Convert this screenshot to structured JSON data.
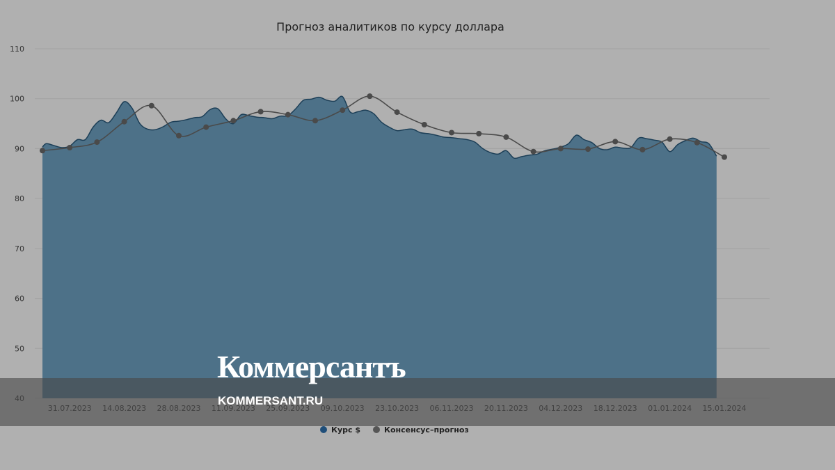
{
  "chart_data": {
    "type": "area",
    "title": "Прогноз аналитиков по курсу доллара",
    "xlabel": "",
    "ylabel": "",
    "ylim": [
      40,
      110
    ],
    "yticks": [
      "110",
      "100",
      "90",
      "80",
      "70",
      "60",
      "50",
      "40"
    ],
    "xticks": [
      "31.07.2023",
      "14.08.2023",
      "28.08.2023",
      "11.09.2023",
      "25.09.2023",
      "09.10.2023",
      "23.10.2023",
      "06.11.2023",
      "20.11.2023",
      "04.12.2023",
      "18.12.2023",
      "01.01.2024",
      "15.01.2024"
    ],
    "grid": true,
    "legend_position": "bottom",
    "series": [
      {
        "name": "Курс $",
        "type": "area",
        "color": "#4d7188",
        "x": [
          "2023-07-24",
          "2023-07-25",
          "2023-07-27",
          "2023-07-29",
          "2023-07-31",
          "2023-08-02",
          "2023-08-04",
          "2023-08-06",
          "2023-08-08",
          "2023-08-10",
          "2023-08-12",
          "2023-08-14",
          "2023-08-16",
          "2023-08-18",
          "2023-08-20",
          "2023-08-22",
          "2023-08-24",
          "2023-08-26",
          "2023-08-28",
          "2023-08-30",
          "2023-09-01",
          "2023-09-03",
          "2023-09-05",
          "2023-09-07",
          "2023-09-09",
          "2023-09-11",
          "2023-09-13",
          "2023-09-15",
          "2023-09-17",
          "2023-09-19",
          "2023-09-21",
          "2023-09-23",
          "2023-09-25",
          "2023-09-27",
          "2023-09-29",
          "2023-10-01",
          "2023-10-03",
          "2023-10-05",
          "2023-10-07",
          "2023-10-09",
          "2023-10-11",
          "2023-10-13",
          "2023-10-15",
          "2023-10-17",
          "2023-10-19",
          "2023-10-21",
          "2023-10-23",
          "2023-10-25",
          "2023-10-27",
          "2023-10-29",
          "2023-10-31",
          "2023-11-02",
          "2023-11-04",
          "2023-11-06",
          "2023-11-08",
          "2023-11-10",
          "2023-11-12",
          "2023-11-14",
          "2023-11-16",
          "2023-11-18",
          "2023-11-20",
          "2023-11-22",
          "2023-11-24",
          "2023-11-26",
          "2023-11-28",
          "2023-11-30",
          "2023-12-02",
          "2023-12-04",
          "2023-12-06",
          "2023-12-08",
          "2023-12-10",
          "2023-12-12",
          "2023-12-14",
          "2023-12-16",
          "2023-12-18",
          "2023-12-20",
          "2023-12-22",
          "2023-12-24",
          "2023-12-26",
          "2023-12-28",
          "2023-12-30",
          "2024-01-01",
          "2024-01-03",
          "2024-01-05",
          "2024-01-07",
          "2024-01-09",
          "2024-01-11",
          "2024-01-13"
        ],
        "values": [
          90.3,
          91.0,
          90.6,
          90.2,
          90.5,
          91.8,
          91.8,
          94.3,
          95.7,
          95.2,
          97.2,
          99.4,
          98.1,
          95.0,
          93.9,
          93.8,
          94.4,
          95.3,
          95.5,
          95.8,
          96.2,
          96.4,
          97.8,
          98.0,
          96.0,
          95.0,
          96.8,
          96.6,
          96.3,
          96.2,
          96.0,
          96.5,
          96.6,
          98.0,
          99.7,
          99.9,
          100.3,
          99.7,
          99.5,
          100.4,
          97.3,
          97.4,
          97.7,
          97.0,
          95.3,
          94.3,
          93.6,
          93.8,
          93.9,
          93.2,
          93.0,
          92.7,
          92.3,
          92.2,
          92.0,
          91.8,
          91.3,
          90.0,
          89.2,
          88.9,
          89.6,
          88.1,
          88.4,
          88.7,
          88.9,
          89.6,
          89.9,
          90.3,
          91.0,
          92.7,
          91.8,
          91.2,
          90.0,
          89.8,
          90.3,
          90.1,
          90.2,
          92.1,
          92.0,
          91.7,
          91.3,
          89.4,
          90.8,
          91.6,
          92.1,
          91.4,
          91.0,
          88.5
        ]
      },
      {
        "name": "Консенсус–прогноз",
        "type": "line",
        "color": "#4a4a4a",
        "x": [
          "2023-07-24",
          "2023-07-31",
          "2023-08-07",
          "2023-08-14",
          "2023-08-21",
          "2023-08-28",
          "2023-09-04",
          "2023-09-11",
          "2023-09-18",
          "2023-09-25",
          "2023-10-02",
          "2023-10-09",
          "2023-10-16",
          "2023-10-23",
          "2023-10-30",
          "2023-11-06",
          "2023-11-13",
          "2023-11-20",
          "2023-11-27",
          "2023-12-04",
          "2023-12-11",
          "2023-12-18",
          "2023-12-25",
          "2024-01-01",
          "2024-01-08",
          "2024-01-15"
        ],
        "values": [
          89.6,
          90.2,
          91.3,
          95.4,
          98.6,
          92.6,
          94.3,
          95.6,
          97.4,
          96.8,
          95.6,
          97.7,
          100.5,
          97.3,
          94.8,
          93.2,
          93.0,
          92.3,
          89.4,
          90.0,
          89.9,
          91.4,
          89.8,
          91.9,
          91.2,
          88.3
        ]
      }
    ]
  },
  "watermark": {
    "logo": "Коммерсантъ",
    "url": "KOMMERSANT.RU"
  }
}
